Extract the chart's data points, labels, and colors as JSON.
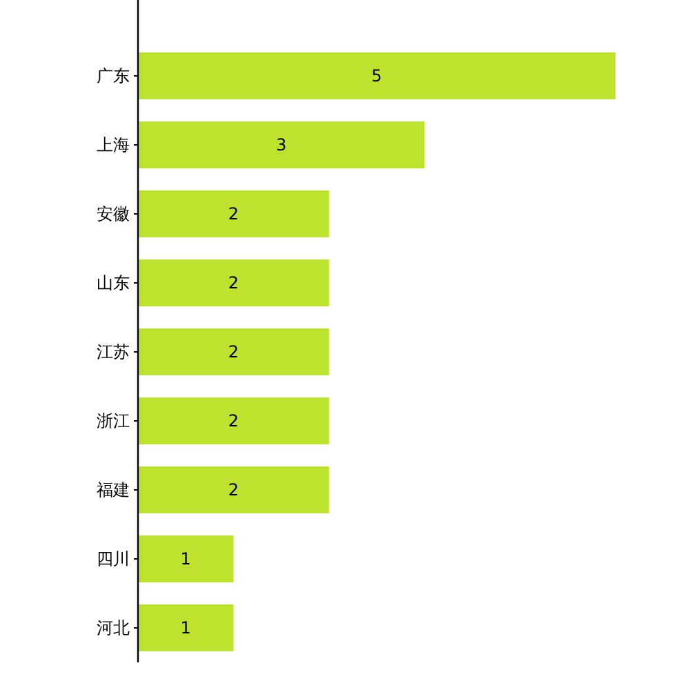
{
  "chart_data": {
    "type": "bar",
    "orientation": "horizontal",
    "data_labels": true,
    "categories": [
      "广东",
      "上海",
      "安徽",
      "山东",
      "江苏",
      "浙江",
      "福建",
      "四川",
      "河北"
    ],
    "values": [
      5,
      3,
      2,
      2,
      2,
      2,
      2,
      1,
      1
    ],
    "color": "#bde32f"
  }
}
